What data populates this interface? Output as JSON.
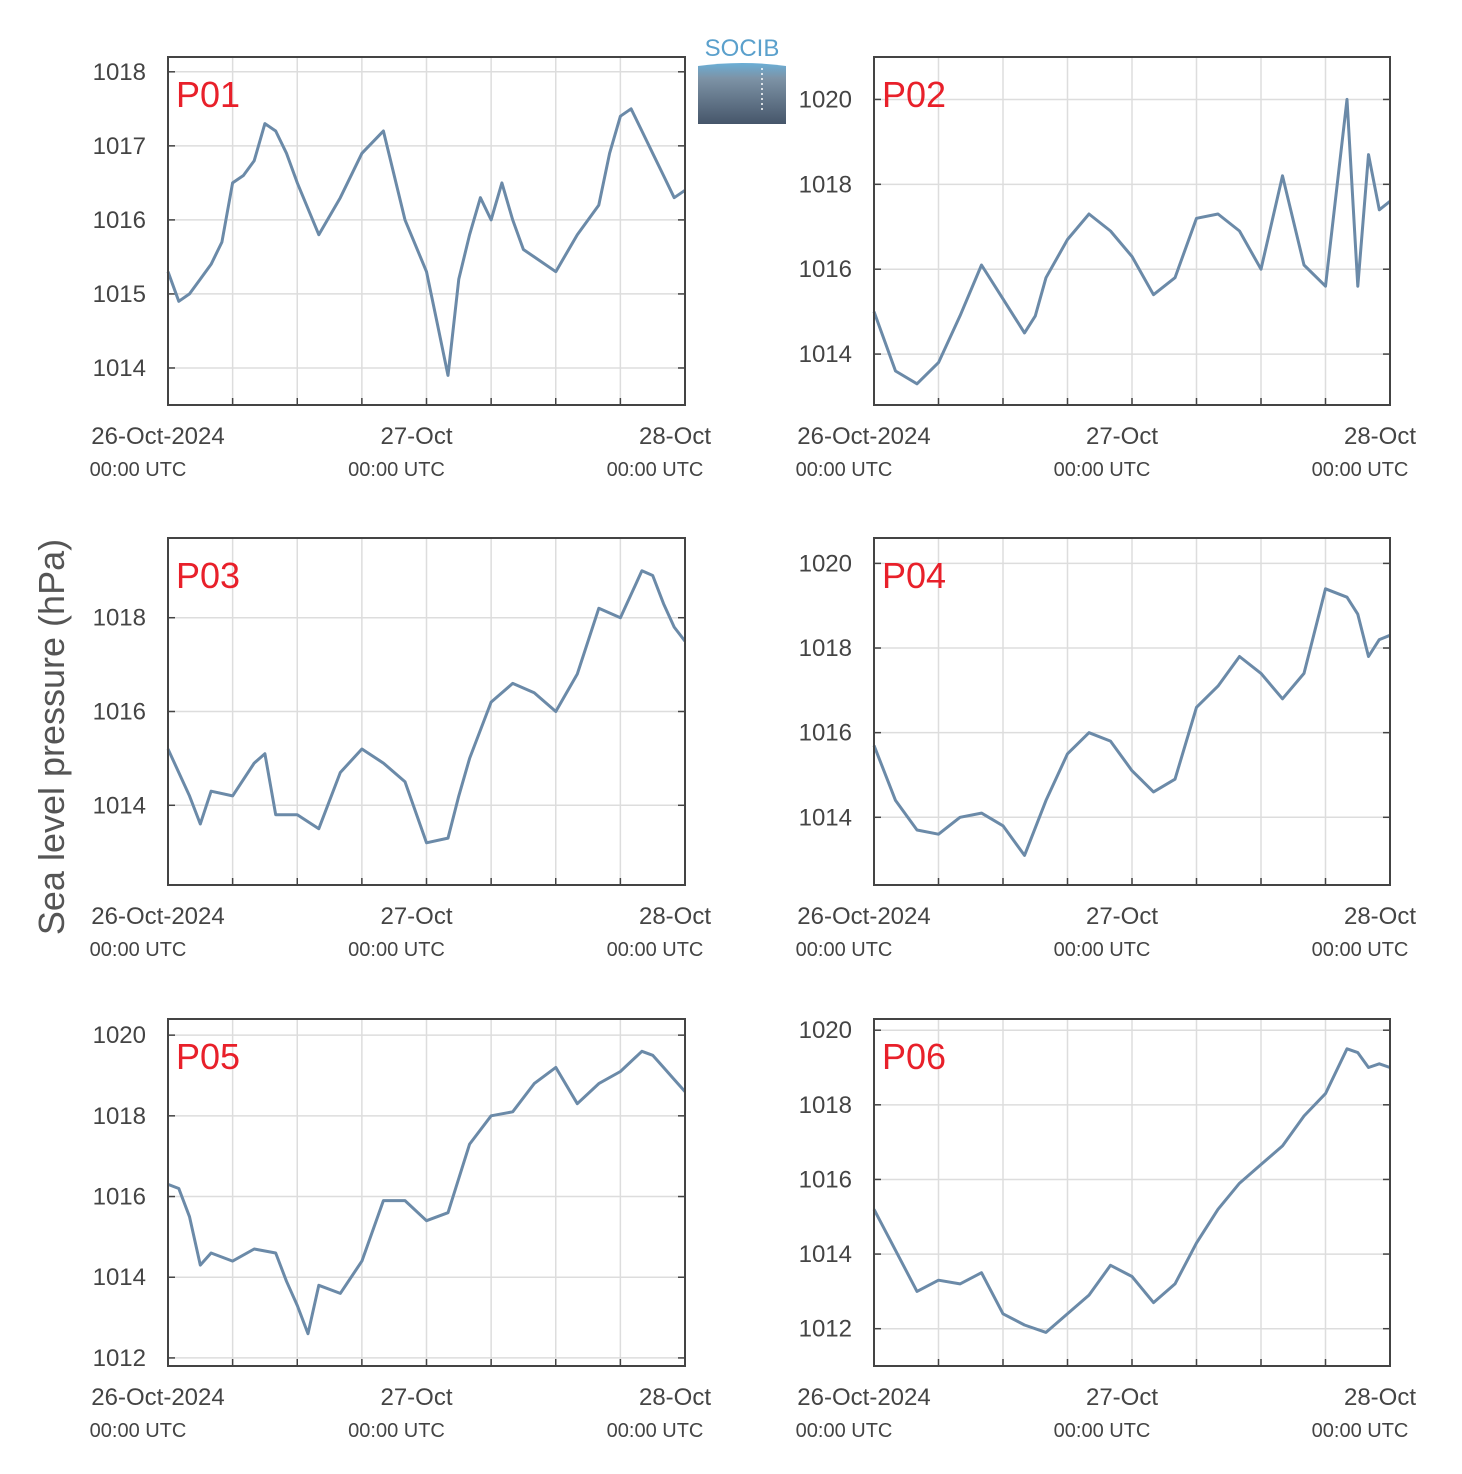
{
  "figure": {
    "ylabel": "Sea level pressure (hPa)",
    "logo_text": "SOCIB",
    "colors": {
      "line": "#6b8aa8",
      "label": "#e8202a",
      "axis": "#444444",
      "grid": "#dddddd",
      "text": "#444444"
    }
  },
  "chart_data": [
    {
      "type": "line",
      "panel_label": "P01",
      "x_ticks": [
        "26-Oct-2024",
        "27-Oct",
        "28-Oct"
      ],
      "x_ticks_sub": [
        "00:00 UTC",
        "00:00 UTC",
        "00:00 UTC"
      ],
      "xlim_hours": [
        0,
        48
      ],
      "ylim": [
        1013.5,
        1018.2
      ],
      "yticks": [
        1014,
        1015,
        1016,
        1017,
        1018
      ],
      "series": [
        {
          "x_hours": [
            0,
            1,
            2,
            3,
            4,
            5,
            6,
            7,
            8,
            9,
            10,
            11,
            12,
            14,
            16,
            18,
            20,
            22,
            24,
            25,
            26,
            27,
            28,
            29,
            30,
            31,
            32,
            33,
            34,
            36,
            38,
            40,
            41,
            42,
            43,
            44,
            45,
            46,
            47,
            48
          ],
          "values": [
            1015.3,
            1014.9,
            1015.0,
            1015.2,
            1015.4,
            1015.7,
            1016.5,
            1016.6,
            1016.8,
            1017.3,
            1017.2,
            1016.9,
            1016.5,
            1015.8,
            1016.3,
            1016.9,
            1017.2,
            1016.0,
            1015.3,
            1014.6,
            1013.9,
            1015.2,
            1015.8,
            1016.3,
            1016.0,
            1016.5,
            1016.0,
            1015.6,
            1015.5,
            1015.3,
            1015.8,
            1016.2,
            1016.9,
            1017.4,
            1017.5,
            1017.2,
            1016.9,
            1016.6,
            1016.3,
            1016.4
          ]
        }
      ]
    },
    {
      "type": "line",
      "panel_label": "P02",
      "x_ticks": [
        "26-Oct-2024",
        "27-Oct",
        "28-Oct"
      ],
      "x_ticks_sub": [
        "00:00 UTC",
        "00:00 UTC",
        "00:00 UTC"
      ],
      "xlim_hours": [
        0,
        48
      ],
      "ylim": [
        1012.8,
        1021.0
      ],
      "yticks": [
        1014,
        1016,
        1018,
        1020
      ],
      "series": [
        {
          "x_hours": [
            0,
            2,
            4,
            6,
            8,
            10,
            12,
            14,
            15,
            16,
            18,
            20,
            22,
            24,
            26,
            28,
            30,
            32,
            34,
            36,
            38,
            40,
            42,
            44,
            45,
            46,
            47,
            48
          ],
          "values": [
            1015.0,
            1013.6,
            1013.3,
            1013.8,
            1014.9,
            1016.1,
            1015.3,
            1014.5,
            1014.9,
            1015.8,
            1016.7,
            1017.3,
            1016.9,
            1016.3,
            1015.4,
            1015.8,
            1017.2,
            1017.3,
            1016.9,
            1016.0,
            1018.2,
            1016.1,
            1015.6,
            1020.0,
            1015.6,
            1018.7,
            1017.4,
            1017.6
          ]
        }
      ]
    },
    {
      "type": "line",
      "panel_label": "P03",
      "x_ticks": [
        "26-Oct-2024",
        "27-Oct",
        "28-Oct"
      ],
      "x_ticks_sub": [
        "00:00 UTC",
        "00:00 UTC",
        "00:00 UTC"
      ],
      "xlim_hours": [
        0,
        48
      ],
      "ylim": [
        1012.3,
        1019.7
      ],
      "yticks": [
        1014,
        1016,
        1018
      ],
      "series": [
        {
          "x_hours": [
            0,
            2,
            3,
            4,
            6,
            8,
            9,
            10,
            12,
            14,
            16,
            18,
            20,
            22,
            24,
            26,
            27,
            28,
            30,
            32,
            34,
            36,
            38,
            40,
            42,
            44,
            45,
            46,
            47,
            48
          ],
          "values": [
            1015.2,
            1014.2,
            1013.6,
            1014.3,
            1014.2,
            1014.9,
            1015.1,
            1013.8,
            1013.8,
            1013.5,
            1014.7,
            1015.2,
            1014.9,
            1014.5,
            1013.2,
            1013.3,
            1014.2,
            1015.0,
            1016.2,
            1016.6,
            1016.4,
            1016.0,
            1016.8,
            1018.2,
            1018.0,
            1019.0,
            1018.9,
            1018.3,
            1017.8,
            1017.5
          ]
        }
      ]
    },
    {
      "type": "line",
      "panel_label": "P04",
      "x_ticks": [
        "26-Oct-2024",
        "27-Oct",
        "28-Oct"
      ],
      "x_ticks_sub": [
        "00:00 UTC",
        "00:00 UTC",
        "00:00 UTC"
      ],
      "xlim_hours": [
        0,
        48
      ],
      "ylim": [
        1012.4,
        1020.6
      ],
      "yticks": [
        1014,
        1016,
        1018,
        1020
      ],
      "series": [
        {
          "x_hours": [
            0,
            2,
            4,
            6,
            8,
            10,
            12,
            14,
            16,
            18,
            20,
            22,
            24,
            26,
            28,
            30,
            32,
            34,
            36,
            38,
            40,
            42,
            44,
            45,
            46,
            47,
            48
          ],
          "values": [
            1015.7,
            1014.4,
            1013.7,
            1013.6,
            1014.0,
            1014.1,
            1013.8,
            1013.1,
            1014.4,
            1015.5,
            1016.0,
            1015.8,
            1015.1,
            1014.6,
            1014.9,
            1016.6,
            1017.1,
            1017.8,
            1017.4,
            1016.8,
            1017.4,
            1019.4,
            1019.2,
            1018.8,
            1017.8,
            1018.2,
            1018.3
          ]
        }
      ]
    },
    {
      "type": "line",
      "panel_label": "P05",
      "x_ticks": [
        "26-Oct-2024",
        "27-Oct",
        "28-Oct"
      ],
      "x_ticks_sub": [
        "00:00 UTC",
        "00:00 UTC",
        "00:00 UTC"
      ],
      "xlim_hours": [
        0,
        48
      ],
      "ylim": [
        1011.8,
        1020.4
      ],
      "yticks": [
        1012,
        1014,
        1016,
        1018,
        1020
      ],
      "series": [
        {
          "x_hours": [
            0,
            1,
            2,
            3,
            4,
            6,
            8,
            10,
            11,
            12,
            13,
            14,
            16,
            18,
            20,
            22,
            24,
            26,
            28,
            30,
            32,
            34,
            36,
            38,
            40,
            42,
            44,
            45,
            46,
            47,
            48
          ],
          "values": [
            1016.3,
            1016.2,
            1015.5,
            1014.3,
            1014.6,
            1014.4,
            1014.7,
            1014.6,
            1013.9,
            1013.3,
            1012.6,
            1013.8,
            1013.6,
            1014.4,
            1015.9,
            1015.9,
            1015.4,
            1015.6,
            1017.3,
            1018.0,
            1018.1,
            1018.8,
            1019.2,
            1018.3,
            1018.8,
            1019.1,
            1019.6,
            1019.5,
            1019.2,
            1018.9,
            1018.6
          ]
        }
      ]
    },
    {
      "type": "line",
      "panel_label": "P06",
      "x_ticks": [
        "26-Oct-2024",
        "27-Oct",
        "28-Oct"
      ],
      "x_ticks_sub": [
        "00:00 UTC",
        "00:00 UTC",
        "00:00 UTC"
      ],
      "xlim_hours": [
        0,
        48
      ],
      "ylim": [
        1011.0,
        1020.3
      ],
      "yticks": [
        1012,
        1014,
        1016,
        1018,
        1020
      ],
      "series": [
        {
          "x_hours": [
            0,
            2,
            4,
            6,
            8,
            10,
            12,
            14,
            16,
            18,
            20,
            22,
            24,
            26,
            28,
            30,
            32,
            34,
            36,
            38,
            40,
            42,
            44,
            45,
            46,
            47,
            48
          ],
          "values": [
            1015.2,
            1014.1,
            1013.0,
            1013.3,
            1013.2,
            1013.5,
            1012.4,
            1012.1,
            1011.9,
            1012.4,
            1012.9,
            1013.7,
            1013.4,
            1012.7,
            1013.2,
            1014.3,
            1015.2,
            1015.9,
            1016.4,
            1016.9,
            1017.7,
            1018.3,
            1019.5,
            1019.4,
            1019.0,
            1019.1,
            1019.0
          ]
        }
      ]
    }
  ]
}
